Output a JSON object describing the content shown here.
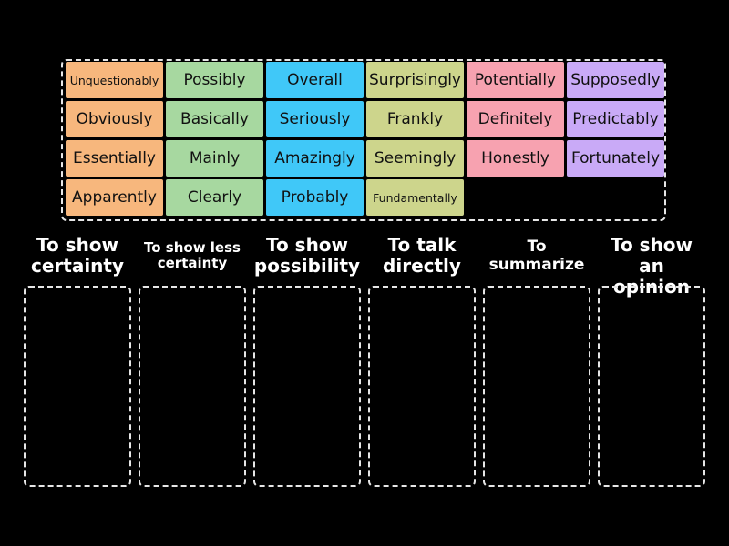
{
  "colors": {
    "orange": "#f7b77d",
    "green": "#a7d8a0",
    "blue": "#40c8f8",
    "olive": "#cdd58c",
    "pink": "#f7a2b0",
    "purple": "#c9aaf7"
  },
  "tiles": [
    [
      "Unquestionably",
      "Possibly",
      "Overall",
      "Surprisingly",
      "Potentially",
      "Supposedly"
    ],
    [
      "Obviously",
      "Basically",
      "Seriously",
      "Frankly",
      "Definitely",
      "Predictably"
    ],
    [
      "Essentially",
      "Mainly",
      "Amazingly",
      "Seemingly",
      "Honestly",
      "Fortunately"
    ],
    [
      "Apparently",
      "Clearly",
      "Probably",
      "Fundamentally"
    ]
  ],
  "categories": [
    "To show certainty",
    "To show less certainty",
    "To show possibility",
    "To talk directly",
    "To summarize",
    "To show an opinion"
  ]
}
